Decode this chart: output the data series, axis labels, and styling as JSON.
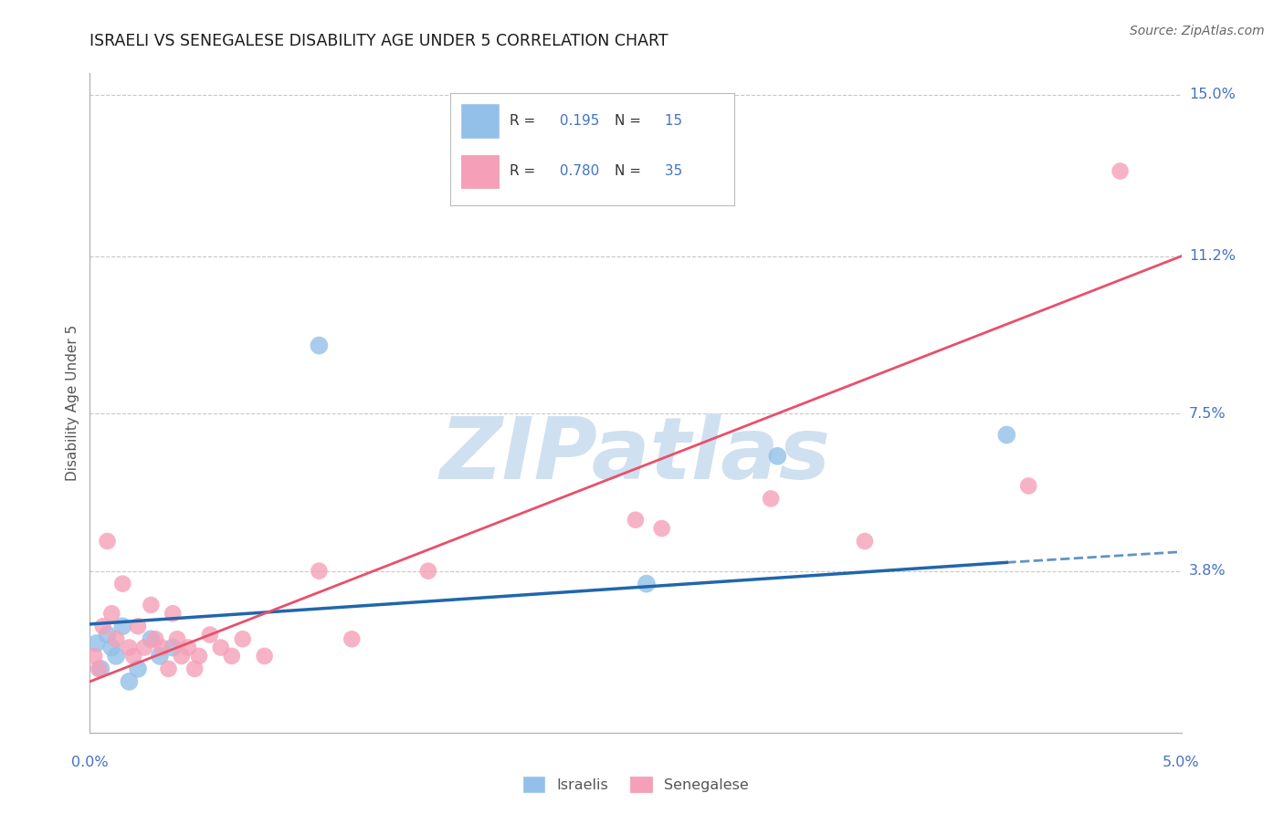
{
  "title": "ISRAELI VS SENEGALESE DISABILITY AGE UNDER 5 CORRELATION CHART",
  "source": "Source: ZipAtlas.com",
  "ylabel": "Disability Age Under 5",
  "xlim": [
    0.0,
    5.0
  ],
  "ylim": [
    0.0,
    15.5
  ],
  "background_color": "#ffffff",
  "grid_color": "#c8c8c8",
  "title_color": "#1a1a1a",
  "title_fontsize": 12.5,
  "source_fontsize": 10,
  "watermark_text": "ZIPatlas",
  "watermark_color": "#cfe0f0",
  "legend_R_israeli": "0.195",
  "legend_N_israeli": "15",
  "legend_R_senegalese": "0.780",
  "legend_N_senegalese": "35",
  "israeli_color": "#92c0e8",
  "senegalese_color": "#f5a0b8",
  "israeli_line_color": "#2166ac",
  "senegalese_line_color": "#e8506a",
  "label_color": "#4472c4",
  "israeli_points_x": [
    0.03,
    0.05,
    0.08,
    0.1,
    0.12,
    0.15,
    0.18,
    0.22,
    0.28,
    0.32,
    0.38,
    1.05,
    2.55,
    3.15,
    4.2
  ],
  "israeli_points_y": [
    2.1,
    1.5,
    2.3,
    2.0,
    1.8,
    2.5,
    1.2,
    1.5,
    2.2,
    1.8,
    2.0,
    9.1,
    3.5,
    6.5,
    7.0
  ],
  "senegalese_points_x": [
    0.02,
    0.04,
    0.06,
    0.08,
    0.1,
    0.12,
    0.15,
    0.18,
    0.2,
    0.22,
    0.25,
    0.28,
    0.3,
    0.33,
    0.36,
    0.38,
    0.4,
    0.42,
    0.45,
    0.48,
    0.5,
    0.55,
    0.6,
    0.65,
    0.7,
    0.8,
    1.05,
    1.2,
    1.55,
    2.5,
    2.62,
    3.12,
    3.55,
    4.3,
    4.72
  ],
  "senegalese_points_y": [
    1.8,
    1.5,
    2.5,
    4.5,
    2.8,
    2.2,
    3.5,
    2.0,
    1.8,
    2.5,
    2.0,
    3.0,
    2.2,
    2.0,
    1.5,
    2.8,
    2.2,
    1.8,
    2.0,
    1.5,
    1.8,
    2.3,
    2.0,
    1.8,
    2.2,
    1.8,
    3.8,
    2.2,
    3.8,
    5.0,
    4.8,
    5.5,
    4.5,
    5.8,
    13.2
  ],
  "isr_reg_x0": 0.0,
  "isr_reg_y0": 2.55,
  "isr_reg_x1": 4.2,
  "isr_reg_y1": 4.0,
  "isr_reg_dash_x1": 5.0,
  "isr_reg_dash_y1": 4.25,
  "sen_reg_x0": 0.0,
  "sen_reg_y0": 1.2,
  "sen_reg_x1": 5.0,
  "sen_reg_y1": 11.2
}
